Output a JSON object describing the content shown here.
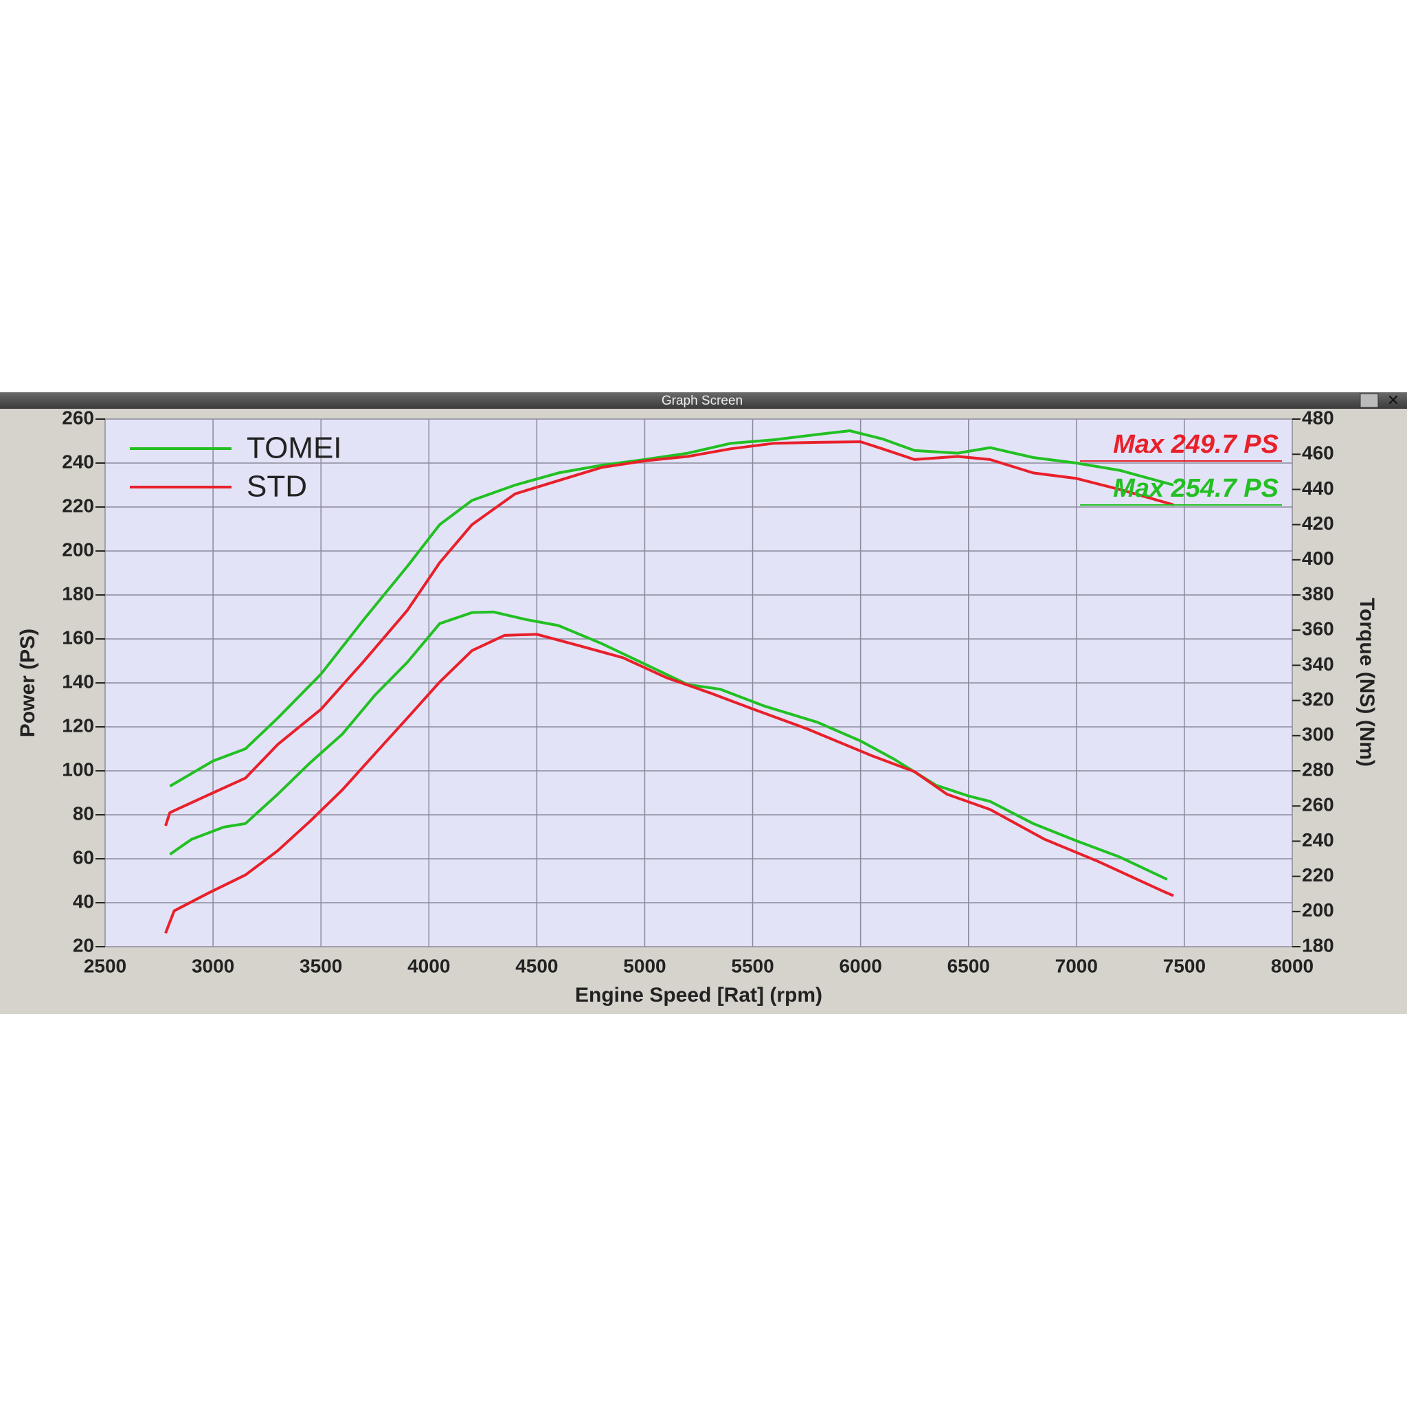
{
  "window": {
    "title": "Graph Screen"
  },
  "chart_data": {
    "type": "line",
    "xlabel": "Engine Speed [Rat] (rpm)",
    "ylabel": "Power (PS)",
    "y2label": "Torque (NS) (Nm)",
    "xlim": [
      2500,
      8000
    ],
    "xticks": [
      2500,
      3000,
      3500,
      4000,
      4500,
      5000,
      5500,
      6000,
      6500,
      7000,
      7500,
      8000
    ],
    "ylim": [
      20,
      260
    ],
    "yticks": [
      20,
      40,
      60,
      80,
      100,
      120,
      140,
      160,
      180,
      200,
      220,
      240,
      260
    ],
    "y2lim": [
      180,
      480
    ],
    "y2ticks": [
      180,
      200,
      220,
      240,
      260,
      280,
      300,
      320,
      340,
      360,
      380,
      400,
      420,
      440,
      460,
      480
    ],
    "grid": true,
    "series": [
      {
        "name": "TOMEI",
        "color": "#22c022",
        "x": [
          2800,
          3000,
          3150,
          3300,
          3500,
          3700,
          3900,
          4050,
          4200,
          4400,
          4600,
          4800,
          5000,
          5200,
          5400,
          5600,
          5800,
          5950,
          6100,
          6250,
          6450,
          6600,
          6800,
          7000,
          7200,
          7450
        ],
        "values": [
          93,
          104.5,
          110,
          124,
          144,
          169,
          193,
          212,
          223,
          230,
          235.5,
          239,
          241.6,
          244.5,
          249,
          250.6,
          253,
          254.7,
          251,
          245.7,
          244.5,
          247,
          242.5,
          240,
          236.7,
          230
        ]
      },
      {
        "name": "STD",
        "color": "#e8202a",
        "x": [
          2780,
          2800,
          3000,
          3150,
          3300,
          3500,
          3700,
          3900,
          4050,
          4200,
          4400,
          4600,
          4800,
          5000,
          5200,
          5400,
          5600,
          5800,
          6000,
          6100,
          6250,
          6450,
          6600,
          6800,
          7000,
          7200,
          7450
        ],
        "values": [
          75,
          81,
          90,
          96.7,
          112,
          128,
          150,
          173,
          194.7,
          212,
          226,
          232,
          238,
          241,
          243,
          246.5,
          249,
          249.4,
          249.7,
          246.5,
          241.6,
          243,
          241.6,
          235.5,
          233,
          228,
          221
        ]
      },
      {
        "color": "#22c022",
        "axis": "y2",
        "x": [
          2800,
          2900,
          3050,
          3150,
          3300,
          3450,
          3600,
          3750,
          3900,
          4050,
          4200,
          4300,
          4450,
          4600,
          4800,
          5000,
          5200,
          5350,
          5550,
          5800,
          6000,
          6150,
          6350,
          6500,
          6600,
          6800,
          7000,
          7200,
          7420
        ],
        "values": [
          232.5,
          241,
          248,
          250,
          266.7,
          284.6,
          301,
          323,
          341.7,
          363.7,
          370,
          370.3,
          366,
          362.6,
          352.4,
          340.7,
          329,
          326.4,
          317,
          307.6,
          297,
          287,
          271.8,
          265.7,
          262.6,
          250,
          240.2,
          231,
          218.3
        ]
      },
      {
        "color": "#e8202a",
        "axis": "y2",
        "x": [
          2780,
          2820,
          2980,
          3150,
          3300,
          3450,
          3600,
          3750,
          3900,
          4050,
          4200,
          4350,
          4500,
          4700,
          4900,
          5100,
          5300,
          5500,
          5750,
          6050,
          6250,
          6400,
          6600,
          6850,
          7100,
          7400,
          7450
        ],
        "values": [
          187.7,
          200.4,
          210.6,
          220.8,
          234.6,
          251.4,
          269.3,
          289.7,
          310,
          330.5,
          348.4,
          357,
          357.6,
          351,
          344.3,
          333,
          324.4,
          315.2,
          304,
          288.7,
          279.5,
          266.7,
          258,
          241.2,
          228.5,
          211.6,
          209
        ]
      }
    ],
    "annotations": [
      {
        "text": "Max 249.7 PS",
        "color": "#e8202a"
      },
      {
        "text": "Max 254.7 PS",
        "color": "#22c022"
      }
    ]
  }
}
